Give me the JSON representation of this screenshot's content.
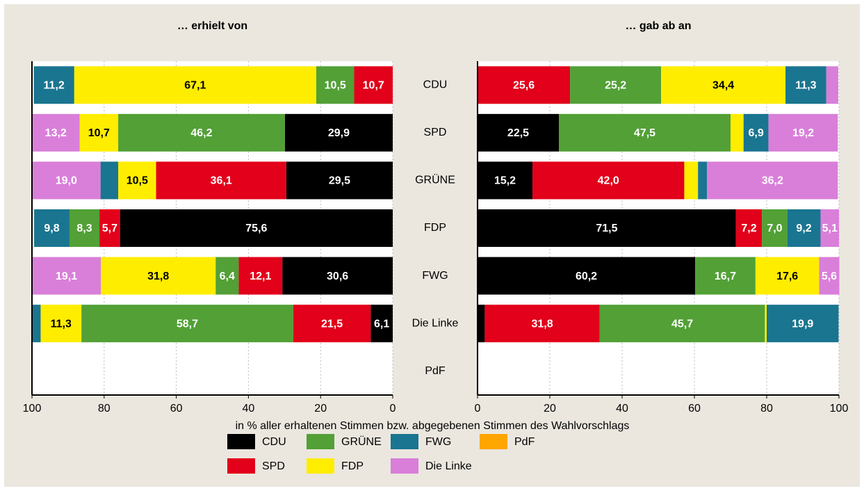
{
  "chart_data": {
    "type": "bar",
    "orientation": "horizontal",
    "stacked": true,
    "grid": true,
    "xlabel": "in % aller erhaltenen Stimmen bzw. abgegebenen Stimmen des Wahlvorschlags",
    "categories": [
      "CDU",
      "SPD",
      "GRÜNE",
      "FDP",
      "FWG",
      "Die Linke",
      "PdF"
    ],
    "series": [
      {
        "name": "CDU",
        "color": "#000000"
      },
      {
        "name": "SPD",
        "color": "#e2001a"
      },
      {
        "name": "GRÜNE",
        "color": "#52a036"
      },
      {
        "name": "FDP",
        "color": "#ffed00"
      },
      {
        "name": "FWG",
        "color": "#1a7590"
      },
      {
        "name": "Die Linke",
        "color": "#d97fd9"
      },
      {
        "name": "PdF",
        "color": "#ffa500"
      }
    ],
    "panels": [
      {
        "title": "… erhielt von",
        "xlim": [
          100,
          0
        ],
        "xticks": [
          100,
          80,
          60,
          40,
          20,
          0
        ],
        "series": [
          {
            "values": [
              null,
              29.9,
              29.5,
              75.6,
              30.6,
              6.1,
              null
            ],
            "value_labels": [
              null,
              "29,9",
              "29,5",
              "75,6",
              "30,6",
              "6,1",
              null
            ]
          },
          {
            "values": [
              10.7,
              null,
              36.1,
              5.7,
              12.1,
              21.5,
              null
            ],
            "value_labels": [
              "10,7",
              null,
              "36,1",
              "5,7",
              "12,1",
              "21,5",
              null
            ]
          },
          {
            "values": [
              10.5,
              46.2,
              null,
              8.3,
              6.4,
              58.7,
              null
            ],
            "value_labels": [
              "10,5",
              "46,2",
              null,
              "8,3",
              "6,4",
              "58,7",
              null
            ]
          },
          {
            "values": [
              67.1,
              10.7,
              10.5,
              null,
              31.8,
              11.3,
              null
            ],
            "value_labels": [
              "67,1",
              "10,7",
              "10,5",
              null,
              "31,8",
              "11,3",
              null
            ]
          },
          {
            "values": [
              11.2,
              null,
              4.9,
              9.8,
              null,
              2.4,
              null
            ],
            "value_labels": [
              "11,2",
              null,
              null,
              "9,8",
              null,
              null,
              null
            ]
          },
          {
            "values": [
              null,
              13.2,
              19.0,
              null,
              19.1,
              null,
              null
            ],
            "value_labels": [
              null,
              "13,2",
              "19,0",
              null,
              "19,1",
              null,
              null
            ]
          },
          {
            "values": [
              null,
              null,
              null,
              null,
              null,
              null,
              null
            ],
            "value_labels": [
              null,
              null,
              null,
              null,
              null,
              null,
              null
            ]
          }
        ]
      },
      {
        "title": "… gab ab an",
        "xlim": [
          0,
          100
        ],
        "xticks": [
          0,
          20,
          40,
          60,
          80,
          100
        ],
        "series": [
          {
            "values": [
              null,
              22.5,
              15.2,
              71.5,
              60.2,
              2.0,
              null
            ],
            "value_labels": [
              null,
              "22,5",
              "15,2",
              "71,5",
              "60,2",
              null,
              null
            ]
          },
          {
            "values": [
              25.6,
              null,
              42.0,
              7.2,
              null,
              31.8,
              null
            ],
            "value_labels": [
              "25,6",
              null,
              "42,0",
              "7,2",
              null,
              "31,8",
              null
            ]
          },
          {
            "values": [
              25.2,
              47.5,
              null,
              7.0,
              16.7,
              45.7,
              null
            ],
            "value_labels": [
              "25,2",
              "47,5",
              null,
              "7,0",
              "16,7",
              "45,7",
              null
            ]
          },
          {
            "values": [
              34.4,
              3.6,
              3.8,
              null,
              17.6,
              0.5,
              null
            ],
            "value_labels": [
              "34,4",
              null,
              null,
              null,
              "17,6",
              null,
              null
            ]
          },
          {
            "values": [
              11.3,
              6.9,
              2.5,
              9.2,
              null,
              19.9,
              null
            ],
            "value_labels": [
              "11,3",
              "6,9",
              null,
              "9,2",
              null,
              "19,9",
              null
            ]
          },
          {
            "values": [
              3.3,
              19.2,
              36.2,
              5.1,
              5.6,
              null,
              null
            ],
            "value_labels": [
              null,
              "19,2",
              "36,2",
              "5,1",
              "5,6",
              null,
              null
            ]
          },
          {
            "values": [
              null,
              null,
              null,
              null,
              null,
              null,
              null
            ],
            "value_labels": [
              null,
              null,
              null,
              null,
              null,
              null,
              null
            ]
          }
        ]
      }
    ]
  }
}
